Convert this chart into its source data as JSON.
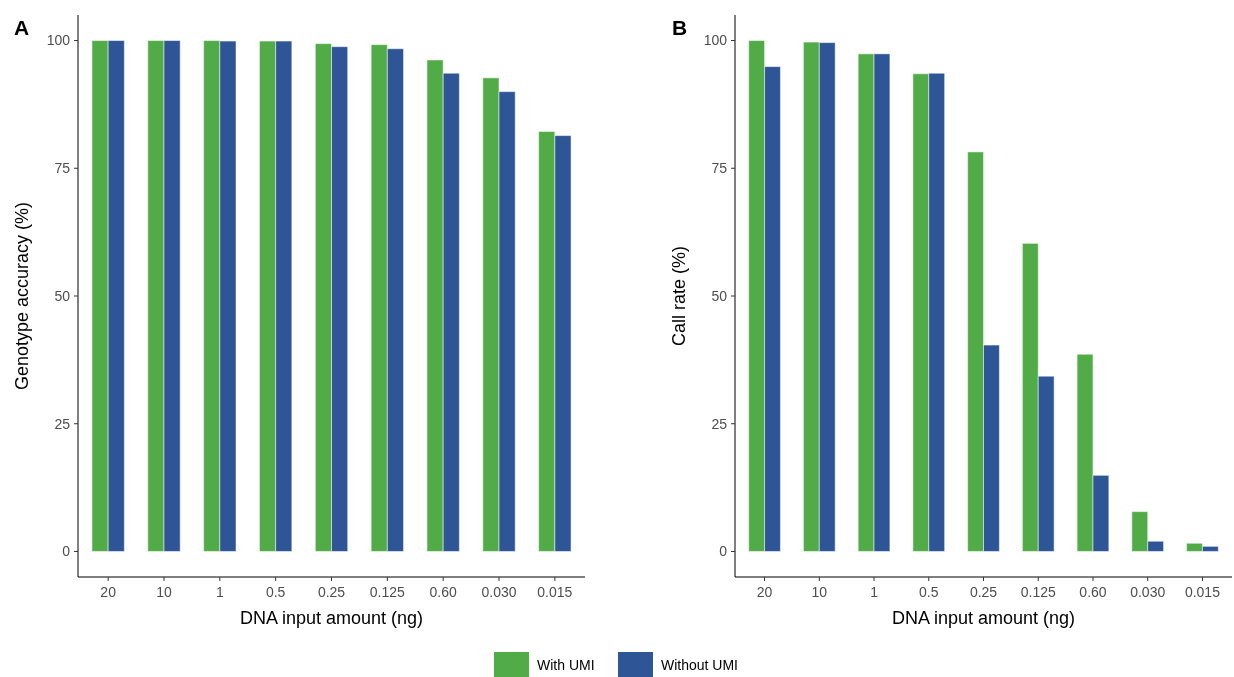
{
  "chart_data": [
    {
      "type": "bar",
      "title": "A",
      "xlabel": "DNA input amount (ng)",
      "ylabel": "Genotype accuracy (%)",
      "categories": [
        "20",
        "10",
        "1",
        "0.5",
        "0.25",
        "0.125",
        "0.60",
        "0.030",
        "0.015"
      ],
      "series": [
        {
          "name": "With UMI",
          "color": "#51ac48",
          "values": [
            100,
            100,
            100,
            99.9,
            99.4,
            99.2,
            96.2,
            92.7,
            82.2
          ]
        },
        {
          "name": "Without UMI",
          "color": "#2e5595",
          "values": [
            100,
            100,
            99.9,
            99.9,
            98.8,
            98.4,
            93.6,
            90.0,
            81.4
          ]
        }
      ],
      "ylim": [
        -5,
        105
      ],
      "yticks": [
        0,
        25,
        50,
        75,
        100
      ],
      "legend": "bottom"
    },
    {
      "type": "bar",
      "title": "B",
      "xlabel": "DNA input amount (ng)",
      "ylabel": "Call rate (%)",
      "categories": [
        "20",
        "10",
        "1",
        "0.5",
        "0.25",
        "0.125",
        "0.60",
        "0.030",
        "0.015"
      ],
      "series": [
        {
          "color": "#51ac48",
          "values": [
            100,
            99.7,
            97.4,
            93.5,
            78.2,
            60.3,
            38.6,
            7.8,
            1.6
          ]
        },
        {
          "color": "#2e5595",
          "values": [
            94.9,
            99.6,
            97.4,
            93.6,
            40.4,
            34.3,
            14.9,
            2.0,
            1.0
          ]
        }
      ],
      "ylim": [
        -5,
        105
      ],
      "yticks": [
        0,
        25,
        50,
        75,
        100
      ]
    }
  ]
}
